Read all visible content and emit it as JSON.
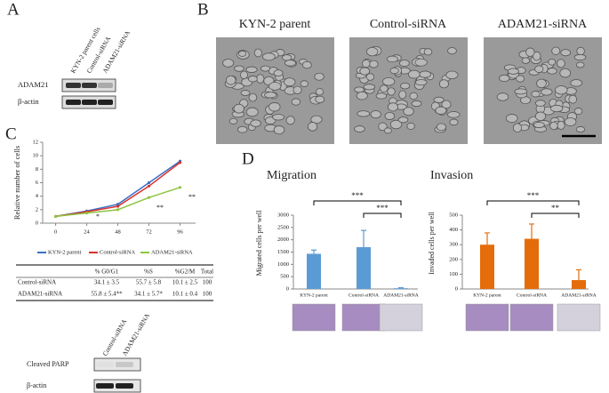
{
  "panel_labels": [
    "A",
    "B",
    "C",
    "D"
  ],
  "blot_a": {
    "lanes": [
      "KYN-2 parent cells",
      "Control-siRNA",
      "ADAM21-siRNA"
    ],
    "rows": [
      "ADAM21",
      "β-actin"
    ]
  },
  "micrographs": {
    "titles": [
      "KYN-2 parent",
      "Control-siRNA",
      "ADAM21-siRNA"
    ]
  },
  "table": {
    "header": [
      "% G0/G1",
      "%S",
      "%G2/M",
      "Total"
    ],
    "rows": [
      [
        "Control-siRNA",
        "34.1 ± 3.5",
        "55.7 ± 5.8",
        "10.1 ± 2.5",
        "100"
      ],
      [
        "ADAM21-siRNA",
        "55.8 ± 5.4**",
        "34.1 ± 5.7*",
        "10.1 ± 0.4",
        "100"
      ]
    ]
  },
  "blot_c": {
    "lanes": [
      "Control-siRNA",
      "ADAM21-siRNA"
    ],
    "rows": [
      "Cleaved PARP",
      "β-actin"
    ]
  },
  "chart_data": [
    {
      "type": "line",
      "y_label": "Relative number of cells",
      "x": [
        0,
        24,
        48,
        72,
        96
      ],
      "xlim": [
        -10,
        108
      ],
      "xticks": [
        0,
        24,
        48,
        72,
        96
      ],
      "ylim": [
        0,
        12
      ],
      "yticks": [
        0,
        2,
        4,
        6,
        8,
        10,
        12
      ],
      "series": [
        {
          "name": "KYN-2 parent",
          "color": "#3b6fc4",
          "values": [
            1,
            1.8,
            2.8,
            6,
            9.2
          ]
        },
        {
          "name": "Control-siRNA",
          "color": "#d9302c",
          "values": [
            1,
            1.7,
            2.5,
            5.5,
            9
          ]
        },
        {
          "name": "ADAM21-siRNA",
          "color": "#8cc63f",
          "values": [
            1,
            1.5,
            2,
            3.8,
            5.3
          ]
        }
      ],
      "annotations": [
        "*",
        "**",
        "**"
      ]
    },
    {
      "type": "bar",
      "title": "Migration",
      "y_label": "Migrated cells per well",
      "categories": [
        "KYN-2 parent",
        "Control-siRNA",
        "ADAM21-siRNA"
      ],
      "values": [
        1430,
        1700,
        30
      ],
      "errors": [
        150,
        680,
        20
      ],
      "color": "#5b9bd5",
      "ylim": [
        0,
        3000
      ],
      "yticks": [
        0,
        500,
        1000,
        1500,
        2000,
        2500,
        3000
      ],
      "annotations": [
        "***",
        "***"
      ]
    },
    {
      "type": "bar",
      "title": "Invasion",
      "y_label": "Invaded cells per well",
      "categories": [
        "KYN-2 parent",
        "Control-siRNA",
        "ADAM21-siRNA"
      ],
      "values": [
        300,
        340,
        60
      ],
      "errors": [
        80,
        100,
        70
      ],
      "color": "#e46c0a",
      "ylim": [
        0,
        500
      ],
      "yticks": [
        0,
        100,
        200,
        300,
        400,
        500
      ],
      "annotations": [
        "***",
        "**"
      ]
    }
  ]
}
